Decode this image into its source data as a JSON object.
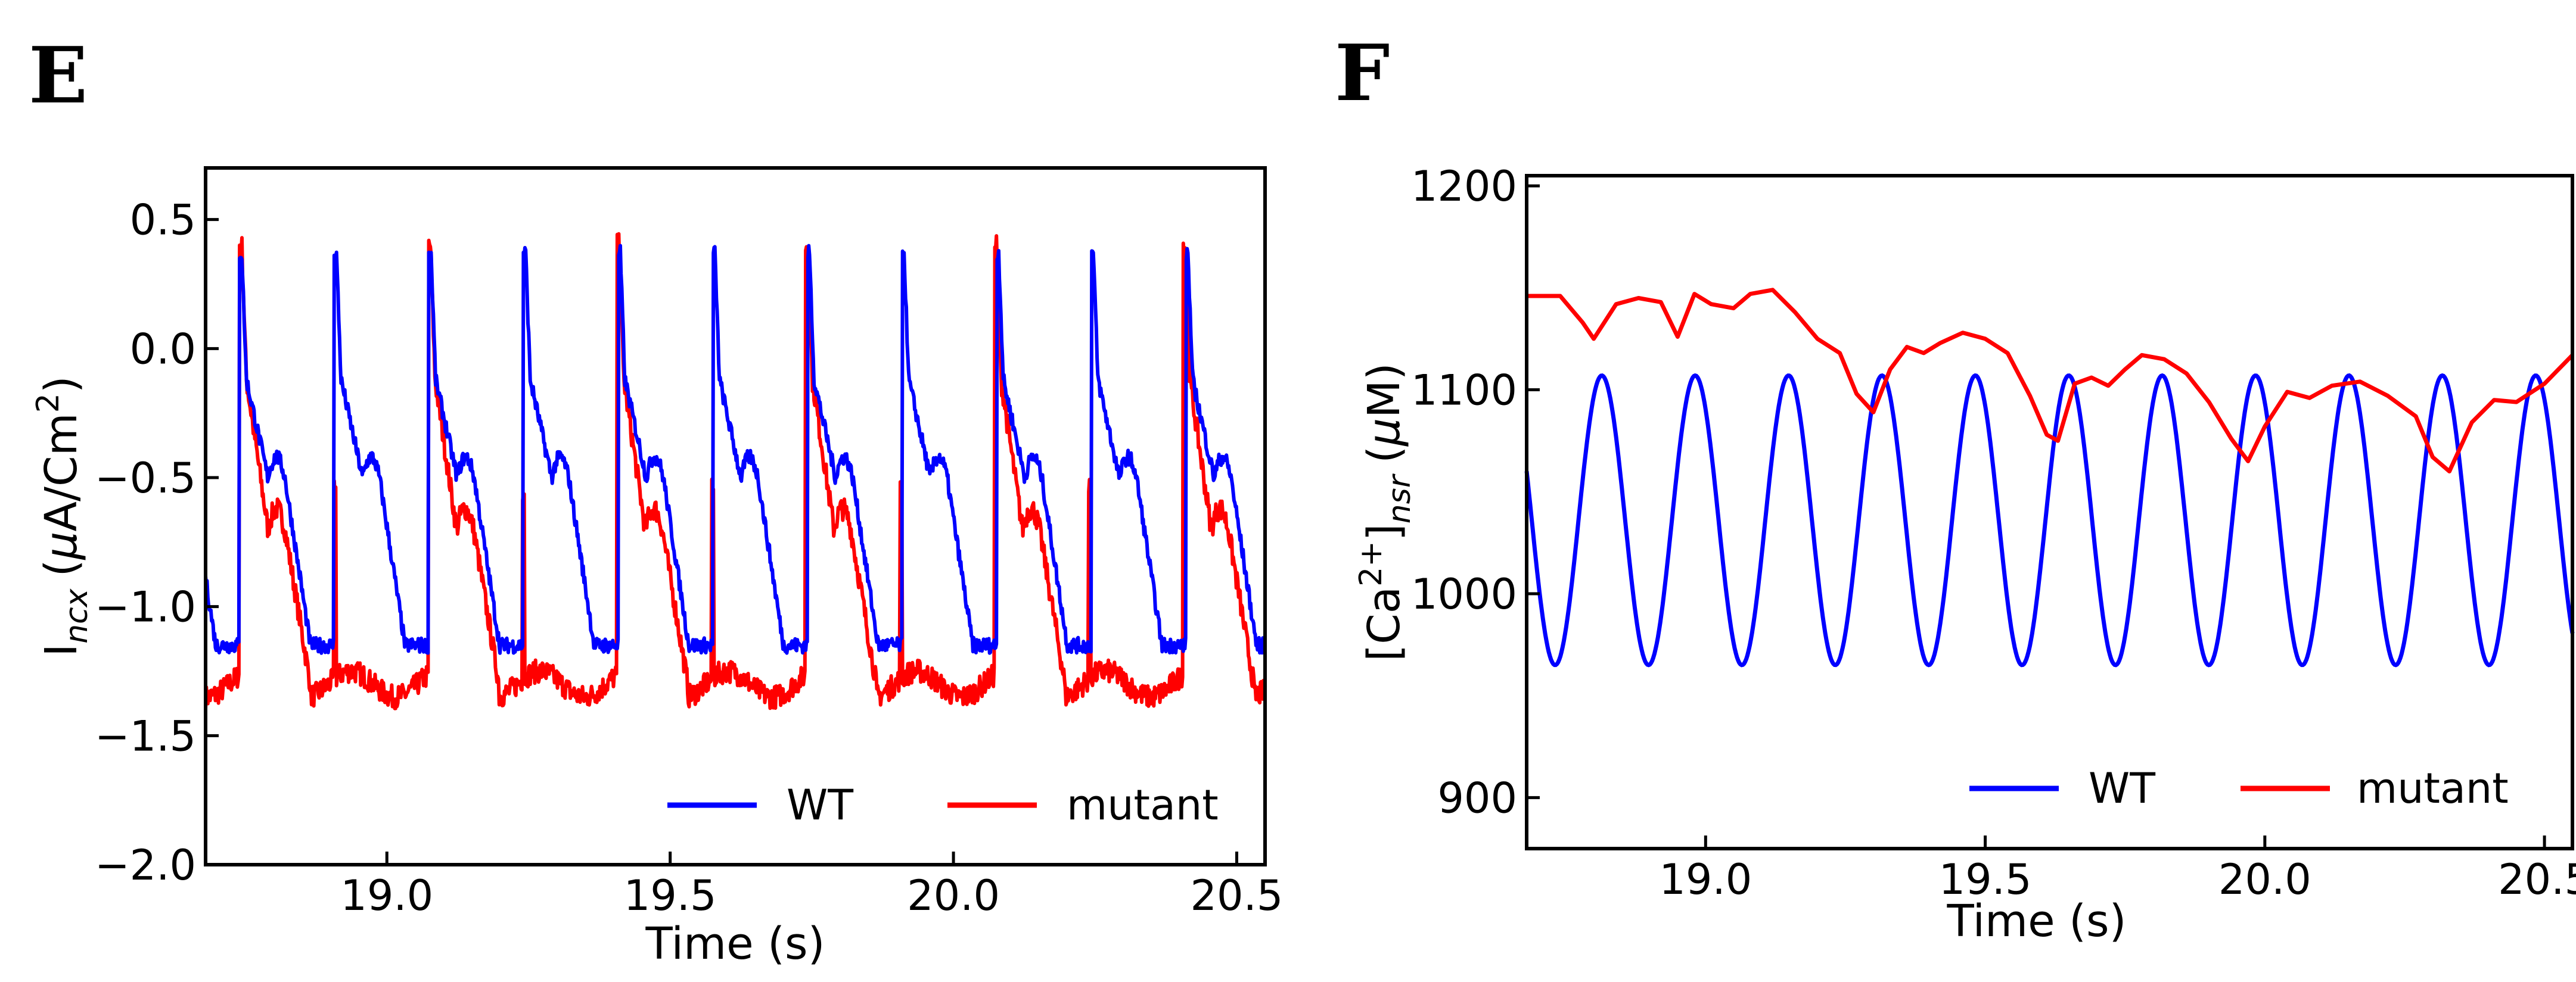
{
  "chart_data": [
    {
      "panel": "E",
      "type": "line",
      "xlabel": "Time (s)",
      "ylabel_main": "I",
      "ylabel_sub": "ncx",
      "ylabel_unit_open": "(",
      "ylabel_unit_mu": "μ",
      "ylabel_unit_rest": "A/Cm",
      "ylabel_unit_sup": "2",
      "ylabel_unit_close": ")",
      "xlim": [
        18.68,
        20.55
      ],
      "ylim": [
        -2.0,
        0.7
      ],
      "xticks": [
        19.0,
        19.5,
        20.0,
        20.5
      ],
      "xtick_labels": [
        "19.0",
        "19.5",
        "20.0",
        "20.5"
      ],
      "yticks": [
        0.5,
        0.0,
        -0.5,
        -1.0,
        -1.5,
        -2.0
      ],
      "ytick_labels": [
        "0.5",
        "0.0",
        "−0.5",
        "−1.0",
        "−1.5",
        "−2.0"
      ],
      "legend_position": "bottom-right",
      "series": [
        {
          "name": "WT",
          "color": "#0000ff",
          "period": 0.167,
          "first_spike": 18.74,
          "peak": 0.37,
          "plateau": -0.12,
          "shoulder": -0.5,
          "baseline": -1.15
        },
        {
          "name": "mutant",
          "color": "#ff0000",
          "period": 0.333,
          "first_spike": 18.74,
          "peak": 0.4,
          "plateau": -0.12,
          "shoulder": -0.7,
          "baseline": -1.3
        }
      ]
    },
    {
      "panel": "F",
      "type": "line",
      "xlabel": "Time (s)",
      "ylabel_open": "[Ca",
      "ylabel_sup": "2+",
      "ylabel_close": "]",
      "ylabel_sub": "nsr",
      "ylabel_unit_open": "(",
      "ylabel_unit_mu": "μ",
      "ylabel_unit_rest": "M)",
      "xlim": [
        18.68,
        20.55
      ],
      "ylim": [
        875,
        1205
      ],
      "xticks": [
        19.0,
        19.5,
        20.0,
        20.5
      ],
      "xtick_labels": [
        "19.0",
        "19.5",
        "20.0",
        "20.5"
      ],
      "yticks": [
        900,
        1000,
        1100,
        1200
      ],
      "ytick_labels": [
        "900",
        "1000",
        "1100",
        "1200"
      ],
      "legend_position": "bottom-right",
      "series": [
        {
          "name": "WT",
          "color": "#0000ff",
          "period": 0.167,
          "max": 1107,
          "min": 965
        },
        {
          "name": "mutant",
          "color": "#ff0000",
          "x": [
            18.68,
            18.74,
            18.78,
            18.8,
            18.84,
            18.88,
            18.92,
            18.95,
            18.98,
            19.01,
            19.05,
            19.08,
            19.12,
            19.16,
            19.2,
            19.24,
            19.27,
            19.3,
            19.33,
            19.36,
            19.39,
            19.42,
            19.46,
            19.5,
            19.54,
            19.58,
            19.61,
            19.63,
            19.66,
            19.69,
            19.72,
            19.75,
            19.78,
            19.82,
            19.86,
            19.9,
            19.94,
            19.97,
            20.0,
            20.04,
            20.08,
            20.12,
            20.17,
            20.22,
            20.27,
            20.3,
            20.33,
            20.37,
            20.41,
            20.45,
            20.5,
            20.55
          ],
          "values": [
            1146,
            1146,
            1133,
            1125,
            1142,
            1145,
            1143,
            1126,
            1147,
            1142,
            1140,
            1147,
            1149,
            1138,
            1125,
            1118,
            1098,
            1089,
            1110,
            1121,
            1118,
            1123,
            1128,
            1125,
            1118,
            1097,
            1078,
            1075,
            1103,
            1106,
            1102,
            1110,
            1117,
            1115,
            1108,
            1094,
            1076,
            1065,
            1082,
            1099,
            1096,
            1102,
            1104,
            1097,
            1087,
            1067,
            1060,
            1084,
            1095,
            1094,
            1103,
            1117
          ]
        }
      ]
    }
  ]
}
